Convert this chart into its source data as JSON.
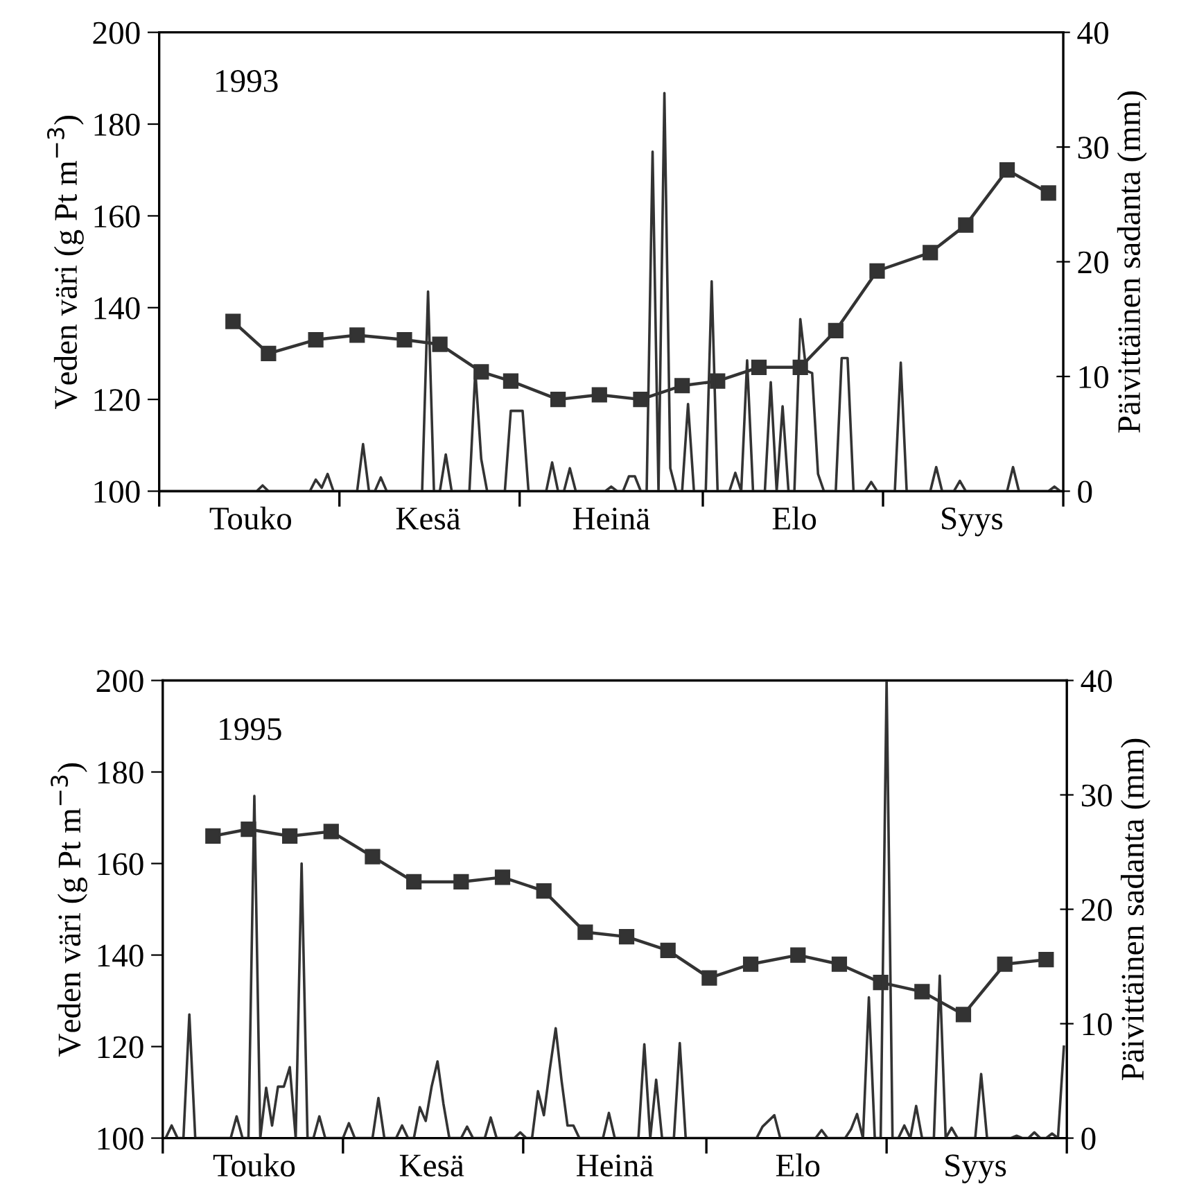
{
  "chart_data": [
    {
      "type": "line",
      "annotations": [
        "1993"
      ],
      "ylabel": "Veden väri (g Pt m$^{−3}$)",
      "y2label": "Päivittäinen sadanta (mm)",
      "categories": [
        null,
        null,
        null,
        null,
        null,
        null,
        null,
        null,
        null,
        null,
        null,
        null,
        null,
        null,
        null,
        "Touko",
        null,
        null,
        null,
        null,
        null,
        null,
        null,
        null,
        null,
        null,
        null,
        null,
        null,
        null,
        null,
        null,
        null,
        null,
        null,
        null,
        null,
        null,
        null,
        null,
        null,
        null,
        null,
        null,
        null,
        "Kesä",
        null,
        null,
        null,
        null,
        null,
        null,
        null,
        null,
        null,
        null,
        null,
        null,
        null,
        null,
        null,
        null,
        null,
        null,
        null,
        null,
        null,
        null,
        null,
        null,
        null,
        null,
        null,
        null,
        null,
        null,
        "Heinä",
        null,
        null,
        null,
        null,
        null,
        null,
        null,
        null,
        null,
        null,
        null,
        null,
        null,
        null,
        null,
        null,
        null,
        null,
        null,
        null,
        null,
        null,
        null,
        null,
        null,
        null,
        null,
        null,
        null,
        null,
        "Elo",
        null,
        null,
        null,
        null,
        null,
        null,
        null,
        null,
        null,
        null,
        null,
        null,
        null,
        null,
        null,
        null,
        null,
        null,
        null,
        null,
        null,
        null,
        null,
        null,
        null,
        null,
        null,
        null,
        null,
        "Syys",
        null,
        null,
        null,
        null,
        null,
        null,
        null,
        null,
        null,
        null,
        null,
        null,
        null,
        null,
        null
      ],
      "ylim": [
        100,
        200
      ],
      "yticks": [
        100,
        120,
        140,
        160,
        180,
        200
      ],
      "y2lim": [
        0,
        40
      ],
      "y2ticks": [
        0,
        10,
        20,
        30,
        40
      ],
      "series": [
        {
          "type": "line",
          "marker": "square",
          "color": "#333333",
          "values": [
            null,
            null,
            null,
            null,
            null,
            null,
            null,
            null,
            null,
            null,
            null,
            null,
            137,
            null,
            null,
            null,
            null,
            null,
            130,
            null,
            null,
            null,
            null,
            null,
            null,
            null,
            133,
            null,
            null,
            null,
            null,
            null,
            null,
            134,
            null,
            null,
            null,
            null,
            null,
            null,
            null,
            133,
            null,
            null,
            null,
            null,
            null,
            132,
            null,
            null,
            null,
            null,
            null,
            null,
            126,
            null,
            null,
            null,
            null,
            124,
            null,
            null,
            null,
            null,
            null,
            null,
            null,
            120,
            null,
            null,
            null,
            null,
            null,
            null,
            121,
            null,
            null,
            null,
            null,
            null,
            null,
            120,
            null,
            null,
            null,
            null,
            null,
            null,
            123,
            null,
            null,
            null,
            null,
            null,
            124,
            null,
            null,
            null,
            null,
            null,
            null,
            127,
            null,
            null,
            null,
            null,
            null,
            null,
            127,
            null,
            null,
            null,
            null,
            null,
            135,
            null,
            null,
            null,
            null,
            null,
            null,
            148,
            null,
            null,
            null,
            null,
            null,
            null,
            null,
            null,
            152,
            null,
            null,
            null,
            null,
            null,
            158,
            null,
            null,
            null,
            null,
            null,
            null,
            170,
            null,
            null,
            null,
            null,
            null,
            null,
            165,
            null,
            null
          ]
        },
        {
          "type": "line",
          "axis": "y2",
          "marker": "none",
          "color": "#333333",
          "values": [
            0,
            0,
            0,
            0,
            0,
            0,
            0,
            0,
            0,
            0,
            0,
            0,
            0,
            0,
            0,
            0,
            0,
            0.5,
            0,
            0,
            0,
            0,
            0,
            0,
            0,
            0,
            1.0,
            0.3,
            1.5,
            0,
            0,
            0,
            0,
            0,
            4.1,
            0,
            0,
            1.2,
            0,
            0,
            0,
            0,
            0,
            0,
            0,
            17.4,
            0,
            0,
            3.2,
            0,
            0,
            0,
            0,
            10.5,
            2.8,
            0,
            0,
            0,
            0,
            7.0,
            7.0,
            7.0,
            0,
            0,
            0,
            0,
            2.5,
            0,
            0,
            2.0,
            0,
            0,
            0,
            0,
            0,
            0,
            0.4,
            0,
            0,
            1.3,
            1.3,
            0,
            0,
            29.6,
            0,
            34.7,
            2,
            0,
            0,
            7.6,
            0,
            0,
            0,
            18.3,
            0,
            0,
            0,
            1.6,
            0,
            11.4,
            0,
            0,
            0,
            9.5,
            0,
            7.4,
            0,
            0,
            15.0,
            10.5,
            10.3,
            1.5,
            0,
            0,
            0,
            11.6,
            11.6,
            0,
            0,
            0,
            0.8,
            0,
            0,
            0,
            0,
            11.2,
            0,
            0,
            0,
            0,
            0,
            2.1,
            0,
            0,
            0,
            0.9,
            0,
            0,
            0,
            0,
            0,
            0,
            0,
            0,
            2.1,
            0,
            0,
            0,
            0,
            0,
            0,
            0.4,
            0
          ]
        }
      ]
    },
    {
      "type": "line",
      "annotations": [
        "1995"
      ],
      "ylabel": "Veden väri (g Pt m$^{−3}$)",
      "y2label": "Päivittäinen sadanta (mm)",
      "categories": [
        null,
        null,
        null,
        null,
        null,
        null,
        null,
        null,
        null,
        null,
        null,
        null,
        null,
        null,
        null,
        "Touko",
        null,
        null,
        null,
        null,
        null,
        null,
        null,
        null,
        null,
        null,
        null,
        null,
        null,
        null,
        null,
        null,
        null,
        null,
        null,
        null,
        null,
        null,
        null,
        null,
        null,
        null,
        null,
        null,
        null,
        "Kesä",
        null,
        null,
        null,
        null,
        null,
        null,
        null,
        null,
        null,
        null,
        null,
        null,
        null,
        null,
        null,
        null,
        null,
        null,
        null,
        null,
        null,
        null,
        null,
        null,
        null,
        null,
        null,
        null,
        null,
        null,
        "Heinä",
        null,
        null,
        null,
        null,
        null,
        null,
        null,
        null,
        null,
        null,
        null,
        null,
        null,
        null,
        null,
        null,
        null,
        null,
        null,
        null,
        null,
        null,
        null,
        null,
        null,
        null,
        null,
        null,
        null,
        null,
        "Elo",
        null,
        null,
        null,
        null,
        null,
        null,
        null,
        null,
        null,
        null,
        null,
        null,
        null,
        null,
        null,
        null,
        null,
        null,
        null,
        null,
        null,
        null,
        null,
        null,
        null,
        null,
        null,
        null,
        null,
        "Syys",
        null,
        null,
        null,
        null,
        null,
        null,
        null,
        null,
        null,
        null,
        null,
        null,
        null,
        null,
        null
      ],
      "ylim": [
        100,
        200
      ],
      "yticks": [
        100,
        120,
        140,
        160,
        180,
        200
      ],
      "y2lim": [
        0,
        40
      ],
      "y2ticks": [
        0,
        10,
        20,
        30,
        40
      ],
      "series": [
        {
          "type": "line",
          "marker": "square",
          "color": "#333333",
          "values": [
            null,
            null,
            null,
            null,
            null,
            null,
            null,
            null,
            166,
            null,
            null,
            null,
            null,
            null,
            167.5,
            null,
            null,
            null,
            null,
            null,
            null,
            166,
            null,
            null,
            null,
            null,
            null,
            null,
            167,
            null,
            null,
            null,
            null,
            null,
            null,
            161.5,
            null,
            null,
            null,
            null,
            null,
            null,
            156,
            null,
            null,
            null,
            null,
            null,
            null,
            null,
            156,
            null,
            null,
            null,
            null,
            null,
            null,
            157,
            null,
            null,
            null,
            null,
            null,
            null,
            154,
            null,
            null,
            null,
            null,
            null,
            null,
            145,
            null,
            null,
            null,
            null,
            null,
            null,
            144,
            null,
            null,
            null,
            null,
            null,
            null,
            141,
            null,
            null,
            null,
            null,
            null,
            null,
            135,
            null,
            null,
            null,
            null,
            null,
            null,
            138,
            null,
            null,
            null,
            null,
            null,
            null,
            null,
            140,
            null,
            null,
            null,
            null,
            null,
            null,
            138,
            null,
            null,
            null,
            null,
            null,
            null,
            134,
            null,
            null,
            null,
            null,
            null,
            null,
            132,
            null,
            null,
            null,
            null,
            null,
            null,
            127,
            null,
            null,
            null,
            null,
            null,
            null,
            138,
            null,
            null,
            null,
            null,
            null,
            null,
            139,
            null,
            null,
            null
          ]
        },
        {
          "type": "line",
          "axis": "y2",
          "marker": "none",
          "color": "#333333",
          "values": [
            0,
            1.1,
            0,
            0,
            10.8,
            0,
            0,
            0,
            0,
            0,
            0,
            0,
            1.9,
            0,
            0,
            29.9,
            0,
            4.4,
            1.1,
            4.5,
            4.5,
            6.2,
            0,
            24.0,
            0,
            0,
            1.9,
            0,
            0,
            0,
            0,
            1.3,
            0,
            0,
            0,
            0,
            3.5,
            0,
            0,
            0,
            1.1,
            0,
            0,
            2.7,
            1.5,
            4.5,
            6.7,
            3,
            0,
            0,
            0,
            1.0,
            0,
            0,
            0,
            1.8,
            0,
            0,
            0,
            0,
            0.5,
            0,
            0,
            4.1,
            2,
            6,
            9.6,
            5,
            1.1,
            1.1,
            0,
            0,
            0,
            0,
            0,
            2.2,
            0,
            0,
            0,
            0,
            0,
            8.2,
            0,
            5.1,
            0,
            0,
            0,
            8.3,
            0,
            0,
            0,
            0,
            0,
            0,
            0,
            0,
            0,
            0,
            0,
            0,
            0,
            1.0,
            1.5,
            2.0,
            0,
            0,
            0,
            0,
            0,
            0,
            0,
            0.7,
            0,
            0,
            0,
            0,
            0.8,
            2.1,
            0,
            12.3,
            0,
            0,
            40,
            0,
            0,
            1.1,
            0,
            2.8,
            0,
            0,
            0,
            14.2,
            0,
            0.9,
            0,
            0,
            0,
            0,
            5.6,
            0,
            0,
            0,
            0,
            0,
            0.2,
            0,
            0,
            0.5,
            0,
            0,
            0.4,
            0,
            8
          ]
        }
      ]
    }
  ]
}
